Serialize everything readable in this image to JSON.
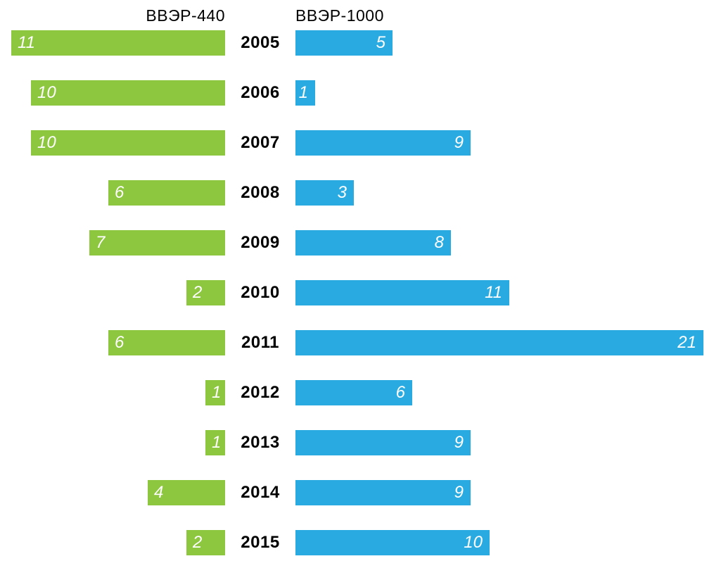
{
  "chart_data": {
    "type": "bar",
    "variant": "diverging-horizontal",
    "title": "",
    "categories": [
      "2005",
      "2006",
      "2007",
      "2008",
      "2009",
      "2010",
      "2011",
      "2012",
      "2013",
      "2014",
      "2015"
    ],
    "series": [
      {
        "name": "ВВЭР-440",
        "side": "left",
        "color": "#8dc63f",
        "values": [
          11,
          10,
          10,
          6,
          7,
          2,
          6,
          1,
          1,
          4,
          2
        ]
      },
      {
        "name": "ВВЭР-1000",
        "side": "right",
        "color": "#29abe2",
        "values": [
          5,
          1,
          9,
          3,
          8,
          11,
          21,
          6,
          9,
          9,
          10
        ]
      }
    ],
    "max_value": 21,
    "value_labels": "inside-outer-end",
    "value_label_color": "#ffffff",
    "year_label_color": "#000000",
    "legend_position": "top",
    "grid": "off",
    "background": "#ffffff"
  }
}
